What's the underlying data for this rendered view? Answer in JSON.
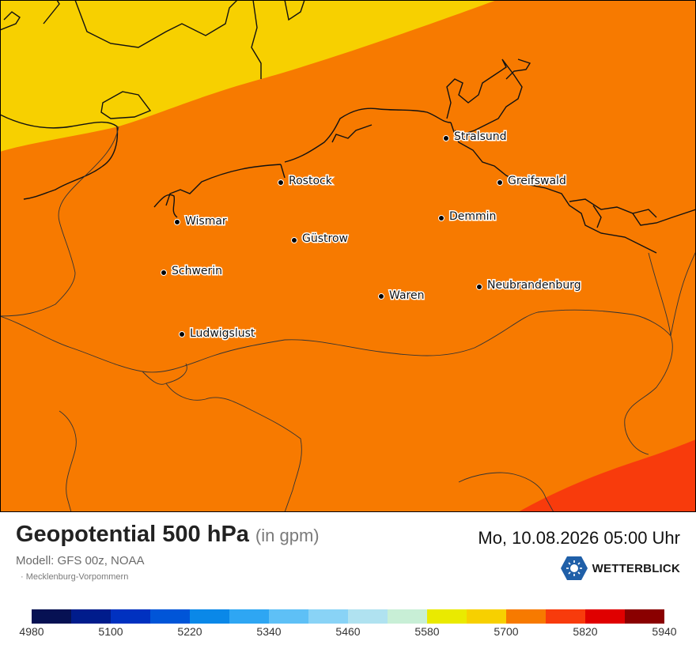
{
  "map": {
    "cities": [
      {
        "name": "Stralsund"
      },
      {
        "name": "Rostock"
      },
      {
        "name": "Greifswald"
      },
      {
        "name": "Wismar"
      },
      {
        "name": "Demmin"
      },
      {
        "name": "Güstrow"
      },
      {
        "name": "Schwerin"
      },
      {
        "name": "Neubrandenburg"
      },
      {
        "name": "Waren"
      },
      {
        "name": "Ludwigslust"
      }
    ],
    "fill_colors": {
      "low": "#f7d000",
      "mid": "#f77a00",
      "high": "#f83b0c"
    }
  },
  "header": {
    "title": "Geopotential 500 hPa",
    "unit": "(in gpm)",
    "model": "Modell: GFS 00z, NOAA",
    "region": "· Mecklenburg-Vorpommern",
    "datetime": "Mo, 10.08.2026 05:00 Uhr",
    "brand": "WETTERBLICK"
  },
  "legend": {
    "colors": [
      "#061153",
      "#001c8c",
      "#0031c0",
      "#0055d8",
      "#0a88e8",
      "#2ea6f3",
      "#5ec0f6",
      "#89d3f6",
      "#b0e2f0",
      "#c8efd6",
      "#eaea00",
      "#f7d000",
      "#f77a00",
      "#f83b0c",
      "#e00000",
      "#8a0000"
    ],
    "ticks": [
      "4980",
      "5100",
      "5220",
      "5340",
      "5460",
      "5580",
      "5700",
      "5820",
      "5940"
    ]
  }
}
